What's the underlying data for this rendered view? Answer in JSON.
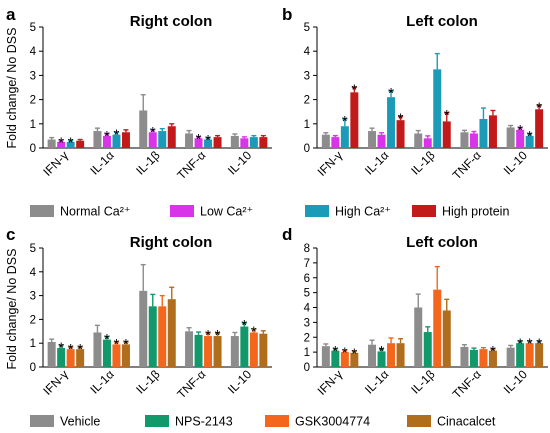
{
  "figure": {
    "ylabel": "Fold change/ No DSS",
    "legend_top": [
      {
        "label": "Normal Ca²⁺",
        "color": "#8c8c8c"
      },
      {
        "label": "Low Ca²⁺",
        "color": "#d935e8"
      },
      {
        "label": "High Ca²⁺",
        "color": "#1c9bb8"
      },
      {
        "label": "High protein",
        "color": "#c21a1a"
      }
    ],
    "legend_bottom": [
      {
        "label": "Vehicle",
        "color": "#8c8c8c"
      },
      {
        "label": "NPS-2143",
        "color": "#12996b"
      },
      {
        "label": "GSK3004774",
        "color": "#f5661d"
      },
      {
        "label": "Cinacalcet",
        "color": "#b06d1c"
      }
    ]
  },
  "chart_data": [
    {
      "panel": "a",
      "title": "Right colon",
      "type": "bar",
      "ylabel": "Fold change/ No DSS",
      "ylim": [
        0,
        5
      ],
      "yticks": [
        0,
        1,
        2,
        3,
        4,
        5
      ],
      "categories": [
        "IFN-γ",
        "IL-1α",
        "IL-1β",
        "TNF-α",
        "IL-10"
      ],
      "series": [
        {
          "name": "Normal Ca²⁺",
          "color": "#8c8c8c",
          "values": [
            0.35,
            0.7,
            1.55,
            0.6,
            0.5
          ],
          "errors": [
            0.08,
            0.12,
            0.65,
            0.12,
            0.08
          ]
        },
        {
          "name": "Low Ca²⁺",
          "color": "#d935e8",
          "values": [
            0.25,
            0.5,
            0.65,
            0.4,
            0.4
          ],
          "errors": [
            0.05,
            0.08,
            0.1,
            0.06,
            0.06
          ]
        },
        {
          "name": "High Ca²⁺",
          "color": "#1c9bb8",
          "values": [
            0.25,
            0.55,
            0.7,
            0.35,
            0.45
          ],
          "errors": [
            0.05,
            0.1,
            0.1,
            0.06,
            0.06
          ]
        },
        {
          "name": "High protein",
          "color": "#c21a1a",
          "values": [
            0.3,
            0.65,
            0.9,
            0.45,
            0.45
          ],
          "errors": [
            0.05,
            0.1,
            0.1,
            0.06,
            0.06
          ]
        }
      ],
      "stars": [
        [
          0,
          1
        ],
        [
          0,
          2
        ],
        [
          1,
          1
        ],
        [
          1,
          2
        ],
        [
          2,
          1
        ],
        [
          3,
          1
        ],
        [
          3,
          2
        ]
      ]
    },
    {
      "panel": "b",
      "title": "Left colon",
      "type": "bar",
      "ylim": [
        0,
        5
      ],
      "yticks": [
        0,
        1,
        2,
        3,
        4,
        5
      ],
      "categories": [
        "IFN-γ",
        "IL-1α",
        "IL-1β",
        "TNF-α",
        "IL-10"
      ],
      "series": [
        {
          "name": "Normal Ca²⁺",
          "color": "#8c8c8c",
          "values": [
            0.55,
            0.7,
            0.6,
            0.65,
            0.85
          ],
          "errors": [
            0.08,
            0.12,
            0.12,
            0.08,
            0.08
          ]
        },
        {
          "name": "Low Ca²⁺",
          "color": "#d935e8",
          "values": [
            0.45,
            0.55,
            0.4,
            0.6,
            0.75
          ],
          "errors": [
            0.06,
            0.08,
            0.1,
            0.08,
            0.08
          ]
        },
        {
          "name": "High Ca²⁺",
          "color": "#1c9bb8",
          "values": [
            0.9,
            2.1,
            3.25,
            1.2,
            0.5
          ],
          "errors": [
            0.3,
            0.25,
            0.65,
            0.45,
            0.08
          ]
        },
        {
          "name": "High protein",
          "color": "#c21a1a",
          "values": [
            2.3,
            1.15,
            1.1,
            1.35,
            1.6
          ],
          "errors": [
            0.2,
            0.15,
            0.35,
            0.2,
            0.15
          ]
        }
      ],
      "stars": [
        [
          0,
          2
        ],
        [
          0,
          3
        ],
        [
          1,
          2
        ],
        [
          1,
          3
        ],
        [
          2,
          3
        ],
        [
          4,
          1
        ],
        [
          4,
          2
        ],
        [
          4,
          3
        ]
      ]
    },
    {
      "panel": "c",
      "title": "Right colon",
      "type": "bar",
      "ylim": [
        0,
        5
      ],
      "yticks": [
        0,
        1,
        2,
        3,
        4,
        5
      ],
      "categories": [
        "IFN-γ",
        "IL-1α",
        "IL-1β",
        "TNF-α",
        "IL-10"
      ],
      "series": [
        {
          "name": "Vehicle",
          "color": "#8c8c8c",
          "values": [
            1.05,
            1.45,
            3.2,
            1.5,
            1.3
          ],
          "errors": [
            0.12,
            0.3,
            1.1,
            0.15,
            0.15
          ]
        },
        {
          "name": "NPS-2143",
          "color": "#12996b",
          "values": [
            0.8,
            1.15,
            2.55,
            1.35,
            1.7
          ],
          "errors": [
            0.1,
            0.12,
            0.5,
            0.12,
            0.15
          ]
        },
        {
          "name": "GSK3004774",
          "color": "#f5661d",
          "values": [
            0.75,
            0.95,
            2.55,
            1.3,
            1.45
          ],
          "errors": [
            0.08,
            0.1,
            0.45,
            0.12,
            0.12
          ]
        },
        {
          "name": "Cinacalcet",
          "color": "#b06d1c",
          "values": [
            0.75,
            0.95,
            2.85,
            1.3,
            1.4
          ],
          "errors": [
            0.08,
            0.1,
            0.5,
            0.12,
            0.12
          ]
        }
      ],
      "stars": [
        [
          0,
          1
        ],
        [
          0,
          2
        ],
        [
          0,
          3
        ],
        [
          1,
          1
        ],
        [
          1,
          2
        ],
        [
          1,
          3
        ],
        [
          3,
          2
        ],
        [
          3,
          3
        ],
        [
          4,
          1
        ],
        [
          4,
          2
        ]
      ]
    },
    {
      "panel": "d",
      "title": "Left colon",
      "type": "bar",
      "ylim": [
        0,
        8
      ],
      "yticks": [
        0,
        1,
        2,
        3,
        4,
        5,
        6,
        7,
        8
      ],
      "categories": [
        "IFN-γ",
        "IL-1α",
        "IL-1β",
        "TNF-α",
        "IL-10"
      ],
      "series": [
        {
          "name": "Vehicle",
          "color": "#8c8c8c",
          "values": [
            1.4,
            1.5,
            4.0,
            1.35,
            1.3
          ],
          "errors": [
            0.15,
            0.3,
            0.9,
            0.15,
            0.15
          ]
        },
        {
          "name": "NPS-2143",
          "color": "#12996b",
          "values": [
            1.1,
            1.05,
            2.35,
            1.15,
            1.6
          ],
          "errors": [
            0.12,
            0.15,
            0.35,
            0.12,
            0.12
          ]
        },
        {
          "name": "GSK3004774",
          "color": "#f5661d",
          "values": [
            1.0,
            1.6,
            5.2,
            1.2,
            1.6
          ],
          "errors": [
            0.1,
            0.35,
            1.55,
            0.1,
            0.12
          ]
        },
        {
          "name": "Cinacalcet",
          "color": "#b06d1c",
          "values": [
            0.95,
            1.6,
            3.8,
            1.1,
            1.6
          ],
          "errors": [
            0.1,
            0.3,
            0.75,
            0.1,
            0.12
          ]
        }
      ],
      "stars": [
        [
          0,
          1
        ],
        [
          0,
          2
        ],
        [
          0,
          3
        ],
        [
          1,
          1
        ],
        [
          3,
          3
        ],
        [
          4,
          1
        ],
        [
          4,
          2
        ],
        [
          4,
          3
        ]
      ]
    }
  ]
}
